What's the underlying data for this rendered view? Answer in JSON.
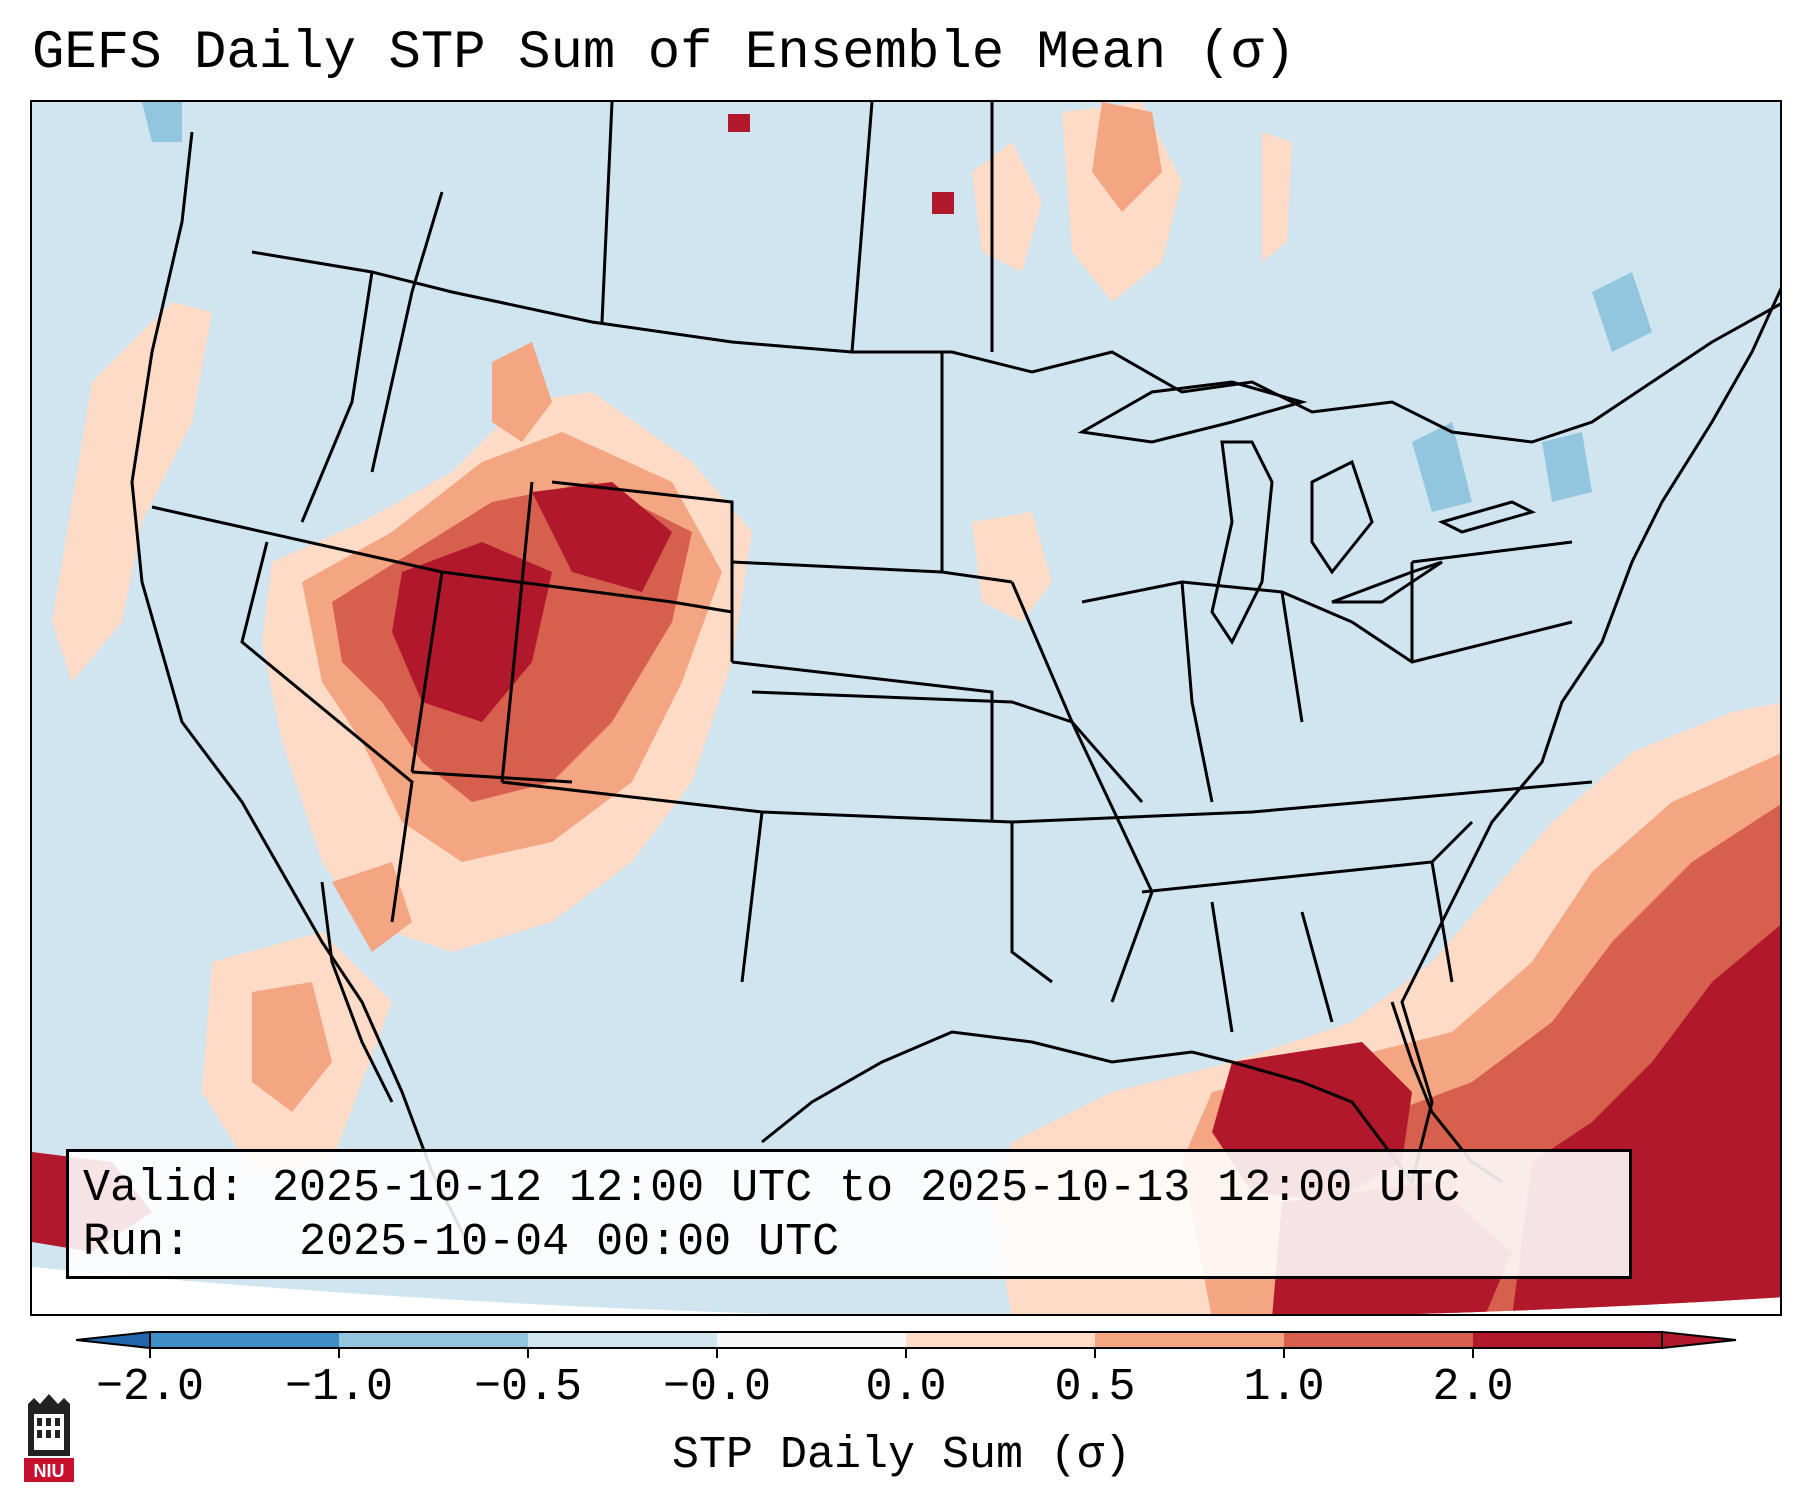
{
  "title": "GEFS Daily STP Sum of Ensemble Mean (σ)",
  "info": {
    "valid_label": "Valid:",
    "valid_value": "2025-10-12 12:00 UTC to 2025-10-13 12:00 UTC",
    "run_label": "Run:",
    "run_value": "2025-10-04 00:00 UTC"
  },
  "colorbar": {
    "label": "STP Daily Sum (σ)",
    "ticks": [
      "−2.0",
      "−1.0",
      "−0.5",
      "−0.0",
      "0.0",
      "0.5",
      "1.0",
      "2.0"
    ],
    "colors": [
      "#3f8fc6",
      "#92c5de",
      "#d1e5f0",
      "#f7f7f7",
      "#fddbc7",
      "#f4a582",
      "#d6604d",
      "#b2182b"
    ],
    "under_color": "#2166ac",
    "over_color": "#b2182b"
  },
  "map": {
    "background_color": "#d1e5f0",
    "outline_color": "#000000"
  },
  "logo": {
    "text": "NIU"
  }
}
